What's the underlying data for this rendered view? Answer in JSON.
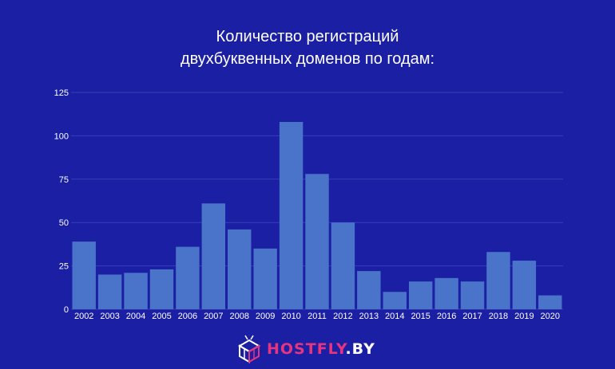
{
  "chart_data": {
    "type": "bar",
    "title_line1": "Количество регистраций",
    "title_line2": "двухбуквенных доменов по годам:",
    "categories": [
      "2002",
      "2003",
      "2004",
      "2005",
      "2006",
      "2007",
      "2008",
      "2009",
      "2010",
      "2011",
      "2012",
      "2013",
      "2014",
      "2015",
      "2016",
      "2017",
      "2018",
      "2019",
      "2020"
    ],
    "values": [
      39,
      20,
      21,
      23,
      36,
      61,
      46,
      35,
      108,
      78,
      50,
      22,
      10,
      16,
      18,
      16,
      33,
      28,
      8
    ],
    "yticks": [
      "0",
      "25",
      "50",
      "75",
      "100",
      "125"
    ],
    "ylim": [
      0,
      125
    ],
    "grid": true,
    "colors": {
      "background": "#1a1fa3",
      "bar": "#4a74c9",
      "grid": "#3540b8",
      "text": "#ffffff"
    }
  },
  "logo": {
    "text_pink": "HOSTFLY",
    "text_white": ".BY",
    "icon": "cube-box-icon",
    "pink": "#e5357f"
  }
}
